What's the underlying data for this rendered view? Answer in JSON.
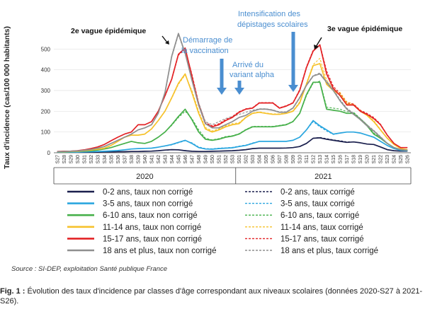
{
  "chart_data": {
    "type": "line",
    "ylabel": "Taux d'incidence (cas/100 000 habitants)",
    "ylim": [
      0,
      600
    ],
    "yticks": [
      0,
      100,
      200,
      300,
      400,
      500
    ],
    "x": [
      "S27",
      "S28",
      "S29",
      "S30",
      "S31",
      "S32",
      "S33",
      "S34",
      "S35",
      "S36",
      "S37",
      "S38",
      "S39",
      "S40",
      "S41",
      "S42",
      "S43",
      "S44",
      "S45",
      "S46",
      "S47",
      "S48",
      "S49",
      "S50",
      "S51",
      "S52",
      "S53",
      "S01",
      "S02",
      "S03",
      "S04",
      "S05",
      "S06",
      "S07",
      "S08",
      "S09",
      "S10",
      "S11",
      "S12",
      "S13",
      "S14",
      "S15",
      "S16",
      "S17",
      "S18",
      "S19",
      "S20",
      "S21",
      "S22",
      "S23",
      "S24",
      "S25",
      "S26"
    ],
    "year_groups": [
      {
        "label": "2020",
        "from": 0,
        "to": 26
      },
      {
        "label": "2021",
        "from": 27,
        "to": 52
      }
    ],
    "series": [
      {
        "name": "0-2 ans, taux non corrigé",
        "color": "#1a1f4d",
        "dash": false,
        "values": [
          3,
          3,
          3,
          3,
          3,
          3,
          3,
          4,
          4,
          5,
          5,
          6,
          6,
          7,
          8,
          10,
          13,
          15,
          14,
          10,
          7,
          6,
          6,
          7,
          8,
          9,
          10,
          12,
          15,
          20,
          22,
          22,
          22,
          22,
          23,
          25,
          30,
          45,
          70,
          72,
          65,
          60,
          55,
          50,
          52,
          48,
          42,
          40,
          28,
          15,
          10,
          8,
          8
        ]
      },
      {
        "name": "3-5 ans, taux non corrigé",
        "color": "#2aa6df",
        "dash": false,
        "values": [
          3,
          3,
          3,
          3,
          4,
          5,
          6,
          7,
          9,
          11,
          14,
          18,
          20,
          21,
          22,
          27,
          33,
          40,
          50,
          60,
          45,
          25,
          18,
          17,
          20,
          22,
          24,
          30,
          35,
          45,
          55,
          55,
          55,
          55,
          55,
          60,
          75,
          110,
          155,
          130,
          110,
          90,
          95,
          100,
          100,
          95,
          85,
          75,
          55,
          35,
          20,
          12,
          10
        ]
      },
      {
        "name": "6-10 ans, taux non corrigé",
        "color": "#46b04a",
        "dash": false,
        "values": [
          4,
          4,
          5,
          6,
          8,
          10,
          13,
          18,
          25,
          35,
          45,
          55,
          48,
          45,
          55,
          75,
          100,
          135,
          175,
          210,
          160,
          100,
          65,
          60,
          65,
          75,
          80,
          90,
          110,
          125,
          125,
          125,
          125,
          130,
          135,
          150,
          190,
          280,
          340,
          340,
          210,
          205,
          200,
          190,
          190,
          160,
          130,
          90,
          70,
          45,
          25,
          15,
          12
        ]
      },
      {
        "name": "11-14 ans, taux non corrigé",
        "color": "#f6c22c",
        "dash": false,
        "values": [
          5,
          5,
          6,
          7,
          10,
          13,
          17,
          22,
          35,
          55,
          75,
          85,
          85,
          90,
          115,
          155,
          200,
          265,
          335,
          380,
          290,
          190,
          115,
          100,
          110,
          125,
          135,
          140,
          170,
          190,
          195,
          190,
          185,
          185,
          190,
          200,
          240,
          330,
          420,
          430,
          330,
          300,
          280,
          235,
          230,
          200,
          180,
          150,
          110,
          70,
          40,
          20,
          15
        ]
      },
      {
        "name": "15-17 ans, taux non corrigé",
        "color": "#e32326",
        "dash": false,
        "values": [
          6,
          7,
          8,
          10,
          14,
          20,
          28,
          40,
          58,
          75,
          90,
          100,
          135,
          135,
          150,
          200,
          275,
          355,
          475,
          505,
          370,
          230,
          140,
          125,
          135,
          155,
          170,
          195,
          210,
          215,
          240,
          240,
          240,
          215,
          225,
          240,
          300,
          410,
          490,
          520,
          380,
          310,
          275,
          230,
          230,
          200,
          185,
          165,
          135,
          85,
          45,
          25,
          25
        ]
      },
      {
        "name": "18 ans et plus, taux non corrigé",
        "color": "#8f8f8f",
        "dash": false,
        "values": [
          5,
          6,
          7,
          9,
          12,
          16,
          22,
          30,
          45,
          60,
          75,
          90,
          110,
          120,
          135,
          190,
          290,
          465,
          575,
          480,
          350,
          230,
          140,
          120,
          120,
          135,
          150,
          170,
          180,
          200,
          210,
          210,
          205,
          195,
          195,
          215,
          265,
          325,
          370,
          380,
          340,
          300,
          250,
          210,
          185,
          160,
          130,
          105,
          75,
          45,
          25,
          15,
          12
        ]
      },
      {
        "name": "0-2 ans, taux corrigé",
        "color": "#1a1f4d",
        "dash": true,
        "values": [
          3,
          3,
          3,
          3,
          3,
          3,
          3,
          4,
          4,
          5,
          5,
          6,
          6,
          7,
          8,
          10,
          12,
          14,
          14,
          11,
          7,
          6,
          6,
          7,
          8,
          9,
          10,
          12,
          15,
          20,
          22,
          22,
          22,
          22,
          23,
          25,
          30,
          45,
          70,
          74,
          68,
          62,
          58,
          52,
          52,
          48,
          42,
          40,
          28,
          15,
          10,
          8,
          8
        ]
      },
      {
        "name": "3-5 ans, taux corrigé",
        "color": "#2aa6df",
        "dash": true,
        "values": [
          3,
          3,
          3,
          3,
          4,
          5,
          6,
          7,
          9,
          11,
          14,
          18,
          20,
          21,
          22,
          27,
          32,
          38,
          48,
          58,
          48,
          28,
          20,
          19,
          22,
          24,
          26,
          32,
          37,
          47,
          55,
          55,
          55,
          55,
          55,
          60,
          75,
          110,
          150,
          125,
          105,
          88,
          95,
          100,
          100,
          95,
          85,
          75,
          55,
          35,
          20,
          12,
          10
        ]
      },
      {
        "name": "6-10 ans, taux corrigé",
        "color": "#46b04a",
        "dash": true,
        "values": [
          4,
          4,
          5,
          6,
          8,
          10,
          13,
          18,
          25,
          35,
          45,
          55,
          48,
          45,
          55,
          75,
          100,
          132,
          170,
          200,
          165,
          110,
          70,
          62,
          68,
          78,
          82,
          92,
          112,
          127,
          127,
          127,
          127,
          132,
          137,
          152,
          188,
          275,
          335,
          345,
          220,
          215,
          210,
          198,
          195,
          165,
          135,
          95,
          72,
          46,
          26,
          15,
          12
        ]
      },
      {
        "name": "11-14 ans, taux corrigé",
        "color": "#f6c22c",
        "dash": true,
        "values": [
          5,
          5,
          6,
          7,
          10,
          13,
          17,
          22,
          35,
          55,
          75,
          85,
          85,
          90,
          115,
          155,
          200,
          262,
          330,
          375,
          300,
          200,
          122,
          105,
          115,
          130,
          140,
          145,
          172,
          192,
          197,
          192,
          187,
          187,
          192,
          202,
          245,
          335,
          425,
          455,
          350,
          310,
          290,
          245,
          235,
          205,
          185,
          155,
          112,
          72,
          40,
          20,
          15
        ]
      },
      {
        "name": "15-17 ans, taux corrigé",
        "color": "#e32326",
        "dash": true,
        "values": [
          6,
          7,
          8,
          10,
          14,
          20,
          28,
          40,
          58,
          75,
          90,
          100,
          135,
          135,
          150,
          200,
          272,
          352,
          470,
          500,
          380,
          240,
          145,
          130,
          140,
          160,
          175,
          198,
          212,
          217,
          242,
          242,
          242,
          217,
          227,
          242,
          305,
          415,
          495,
          522,
          395,
          320,
          285,
          240,
          235,
          205,
          190,
          170,
          138,
          86,
          45,
          25,
          25
        ]
      },
      {
        "name": "18 ans et plus, taux corrigé",
        "color": "#8f8f8f",
        "dash": true,
        "values": [
          5,
          6,
          7,
          9,
          12,
          16,
          22,
          30,
          45,
          60,
          75,
          90,
          110,
          120,
          135,
          190,
          285,
          460,
          570,
          475,
          360,
          240,
          150,
          135,
          150,
          165,
          175,
          185,
          195,
          205,
          212,
          212,
          207,
          197,
          197,
          217,
          268,
          328,
          372,
          385,
          345,
          305,
          255,
          215,
          190,
          165,
          135,
          108,
          78,
          46,
          26,
          15,
          12
        ]
      }
    ],
    "annotations": [
      {
        "text": "2e vague épidémique",
        "x_index": 18,
        "style": "bold"
      },
      {
        "text": "Démarrage de la vaccination",
        "x_index": 25,
        "style": "blue-arrow"
      },
      {
        "text": "Arrivé du variant alpha",
        "x_index": 28,
        "style": "blue-arrow"
      },
      {
        "text": "Intensification des dépistages scolaires",
        "x_index": 36,
        "style": "blue-arrow"
      },
      {
        "text": "3e vague épidémique",
        "x_index": 39,
        "style": "bold"
      }
    ]
  },
  "labels": {
    "annot_wave2": "2e vague épidémique",
    "annot_vacc_1": "Démarrage de",
    "annot_vacc_2": "la vaccination",
    "annot_alpha_1": "Arrivé du",
    "annot_alpha_2": "variant alpha",
    "annot_tests_1": "Intensification des",
    "annot_tests_2": "dépistages scolaires",
    "annot_wave3": "3e vague épidémique"
  },
  "source": "Source : SI-DEP, exploitation Santé publique France",
  "caption": {
    "fig_label": "Fig. 1 :",
    "text": " Évolution des taux d'incidence par classes d'âge correspondant aux niveaux scolaires (données 2020-S27 à 2021-S26)."
  }
}
